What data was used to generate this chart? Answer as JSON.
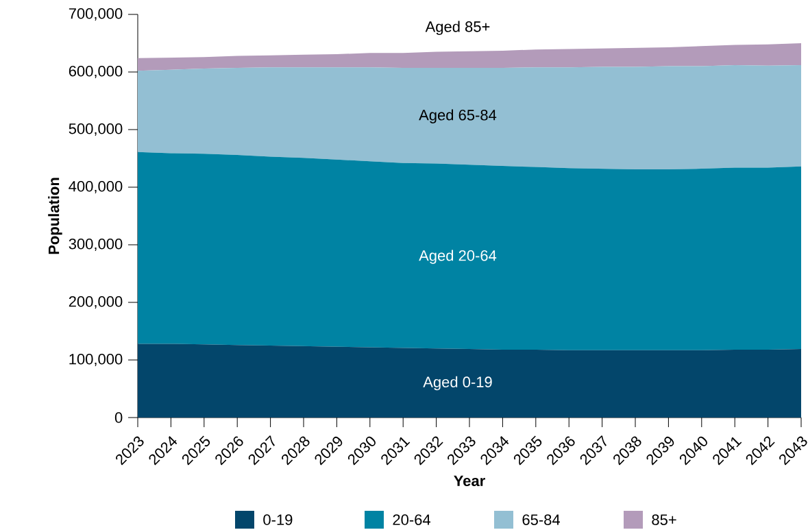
{
  "chart_data": {
    "type": "area",
    "stacked": true,
    "xlabel": "Year",
    "ylabel": "Population",
    "categories": [
      "2023",
      "2024",
      "2025",
      "2026",
      "2027",
      "2028",
      "2029",
      "2030",
      "2031",
      "2032",
      "2033",
      "2034",
      "2035",
      "2036",
      "2037",
      "2038",
      "2039",
      "2040",
      "2041",
      "2042",
      "2043"
    ],
    "series": [
      {
        "name": "0-19",
        "color": "#03466b",
        "values": [
          128000,
          128000,
          127000,
          126000,
          125000,
          124000,
          123000,
          122000,
          121000,
          120000,
          119000,
          118000,
          118000,
          117000,
          117000,
          117000,
          117000,
          117000,
          118000,
          118000,
          119000
        ]
      },
      {
        "name": "20-64",
        "color": "#0083a3",
        "values": [
          333000,
          331000,
          331000,
          330000,
          328000,
          327000,
          325000,
          323000,
          321000,
          321000,
          320000,
          319000,
          317000,
          316000,
          315000,
          314000,
          314000,
          315000,
          316000,
          316000,
          317000
        ]
      },
      {
        "name": "65-84",
        "color": "#93bfd3",
        "values": [
          141000,
          145000,
          148000,
          151000,
          155000,
          157000,
          160000,
          163000,
          165000,
          166000,
          168000,
          170000,
          173000,
          175000,
          177000,
          178000,
          179000,
          178000,
          178000,
          177000,
          176000
        ]
      },
      {
        "name": "85+",
        "color": "#b39bba",
        "values": [
          22000,
          21000,
          20000,
          21000,
          21000,
          22000,
          23000,
          25000,
          26000,
          28000,
          29000,
          30000,
          31000,
          32000,
          32000,
          33000,
          33000,
          35000,
          35000,
          37000,
          38000
        ]
      }
    ],
    "ylim": [
      0,
      700000
    ],
    "yticks": [
      {
        "value": 0,
        "label": "0"
      },
      {
        "value": 100000,
        "label": "100,000"
      },
      {
        "value": 200000,
        "label": "200,000"
      },
      {
        "value": 300000,
        "label": "300,000"
      },
      {
        "value": 400000,
        "label": "400,000"
      },
      {
        "value": 500000,
        "label": "500,000"
      },
      {
        "value": 600000,
        "label": "600,000"
      },
      {
        "value": 700000,
        "label": "700,000"
      }
    ],
    "legend": "bottom",
    "annotations": [
      "Aged 85+",
      "Aged 65-84",
      "Aged 20-64",
      "Aged 0-19"
    ]
  }
}
